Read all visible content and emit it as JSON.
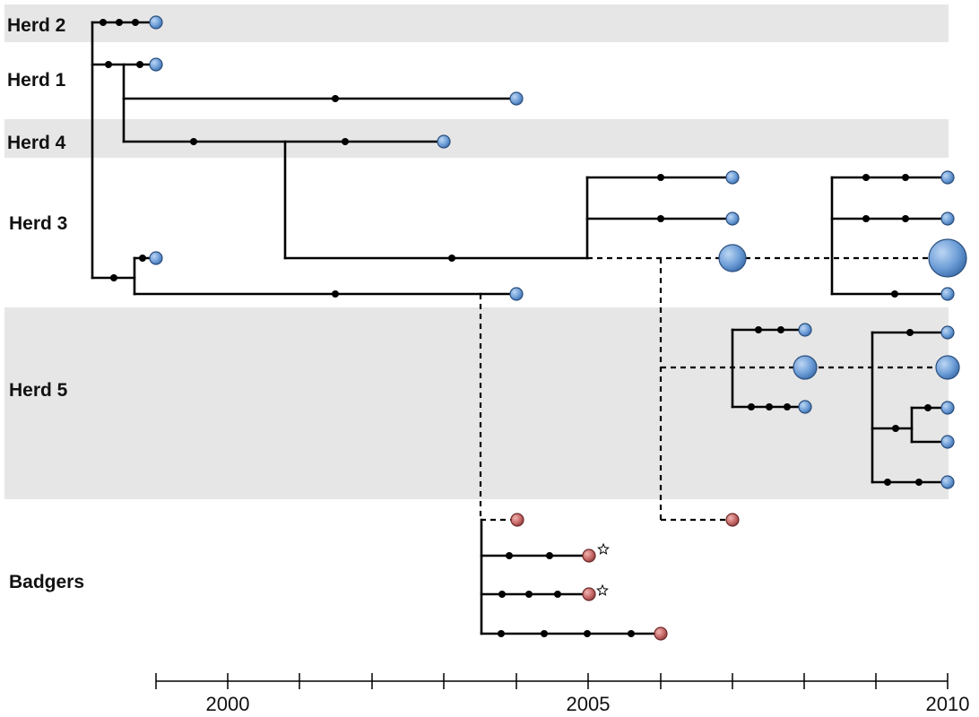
{
  "groups": [
    {
      "name": "Herd 2"
    },
    {
      "name": "Herd 1"
    },
    {
      "name": "Herd 4"
    },
    {
      "name": "Herd 3"
    },
    {
      "name": "Herd 5"
    },
    {
      "name": "Badgers"
    }
  ],
  "axis": {
    "years": [
      "2000",
      "2005",
      "2010"
    ]
  },
  "colors": {
    "herd_isolate": "#6f9fd8",
    "badger_isolate": "#c86a6a",
    "band": "#e6e6e6",
    "line": "#000000"
  },
  "legend_symbols": {
    "tip_marker_icon": "star-icon"
  }
}
